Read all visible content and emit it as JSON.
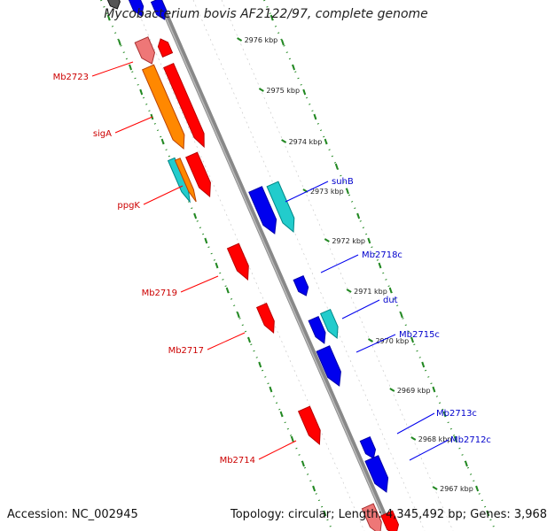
{
  "title": "Mycobacterium bovis AF2122/97, complete genome",
  "footer": {
    "accession": "Accession: NC_002945",
    "summary": "Topology: circular; Length: 4,345,492 bp; Genes: 3,968"
  },
  "colors": {
    "forward": "#ff0000",
    "reverse": "#0000ee",
    "orange": "#ff8800",
    "cyan": "#22cccc",
    "pink": "#ee7777",
    "backbone": "#888888",
    "ticks": "#228822",
    "label_forward": "#cc0000",
    "label_reverse": "#0000cc"
  },
  "scale_labels": [
    "2976 kbp",
    "2975 kbp",
    "2974 kbp",
    "2973 kbp",
    "2972 kbp",
    "2971 kbp",
    "2970 kbp",
    "2969 kbp",
    "2968 kbp",
    "2967 kbp"
  ],
  "forward_labels": [
    "Mb2723",
    "sigA",
    "ppgK",
    "Mb2719",
    "Mb2717",
    "Mb2714"
  ],
  "reverse_labels": [
    "suhB",
    "Mb2718c",
    "dut",
    "Mb2715c",
    "Mb2713c",
    "Mb2712c"
  ]
}
